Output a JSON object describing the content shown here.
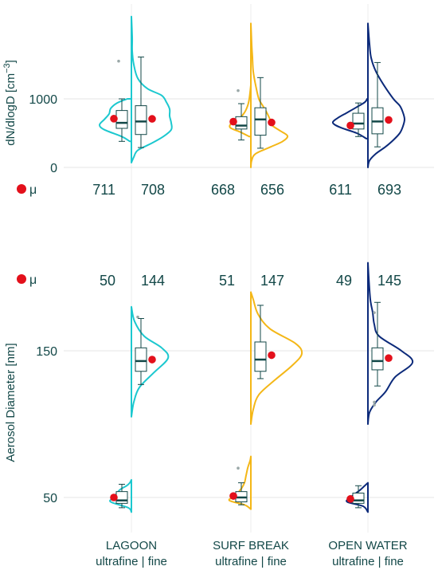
{
  "chart_data": {
    "type": "violin",
    "groups": [
      {
        "label_main": "LAGOON",
        "label_sub": "ultrafine | fine",
        "color": "#1cc8cf"
      },
      {
        "label_main": "SURF BREAK",
        "label_sub": "ultrafine | fine",
        "color": "#f4b717"
      },
      {
        "label_main": "OPEN WATER",
        "label_sub": "ultrafine | fine",
        "color": "#0c2a7a"
      }
    ],
    "mean_marker_color": "#e3101b",
    "panels": [
      {
        "ylabel": "dN/dlogD [cm",
        "ylabel_sup": "−3",
        "ylabel_tail": "]",
        "yticks": [
          0,
          1000
        ],
        "ylim": [
          -250,
          2200
        ],
        "legend_label": "μ",
        "means": [
          {
            "ultrafine": 711,
            "fine": 708
          },
          {
            "ultrafine": 668,
            "fine": 656
          },
          {
            "ultrafine": 611,
            "fine": 693
          }
        ],
        "mean_labels": [
          {
            "ultrafine": "711",
            "fine": "708"
          },
          {
            "ultrafine": "668",
            "fine": "656"
          },
          {
            "ultrafine": "611",
            "fine": "693"
          }
        ],
        "boxes": [
          {
            "ultrafine": {
              "whisker_low": 380,
              "q1": 570,
              "median": 650,
              "q3": 830,
              "whisker_high": 1000,
              "outliers": [
                1550
              ]
            },
            "fine": {
              "whisker_low": 290,
              "q1": 480,
              "median": 670,
              "q3": 900,
              "whisker_high": 1610,
              "outliers": []
            }
          },
          {
            "ultrafine": {
              "whisker_low": 400,
              "q1": 560,
              "median": 610,
              "q3": 740,
              "whisker_high": 930,
              "outliers": [
                1120
              ]
            },
            "fine": {
              "whisker_low": 280,
              "q1": 470,
              "median": 700,
              "q3": 870,
              "whisker_high": 1310,
              "outliers": []
            }
          },
          {
            "ultrafine": {
              "whisker_low": 450,
              "q1": 560,
              "median": 640,
              "q3": 790,
              "whisker_high": 940,
              "outliers": []
            },
            "fine": {
              "whisker_low": 300,
              "q1": 490,
              "median": 670,
              "q3": 870,
              "whisker_high": 1530,
              "outliers": []
            }
          }
        ]
      },
      {
        "ylabel": "Aerosol Diameter [nm]",
        "yticks": [
          50,
          150
        ],
        "ylim": [
          20,
          230
        ],
        "legend_label": "μ",
        "means": [
          {
            "ultrafine": 50,
            "fine": 144
          },
          {
            "ultrafine": 51,
            "fine": 147
          },
          {
            "ultrafine": 49,
            "fine": 145
          }
        ],
        "mean_labels": [
          {
            "ultrafine": "50",
            "fine": "144"
          },
          {
            "ultrafine": "51",
            "fine": "147"
          },
          {
            "ultrafine": "49",
            "fine": "145"
          }
        ],
        "boxes": [
          {
            "ultrafine": {
              "whisker_low": 43,
              "q1": 46,
              "median": 48,
              "q3": 54,
              "whisker_high": 59,
              "outliers": []
            },
            "fine": {
              "whisker_low": 127,
              "q1": 136,
              "median": 143,
              "q3": 152,
              "whisker_high": 172,
              "outliers": [
                173
              ]
            }
          },
          {
            "ultrafine": {
              "whisker_low": 45,
              "q1": 47,
              "median": 50,
              "q3": 54,
              "whisker_high": 60,
              "outliers": [
                70
              ]
            },
            "fine": {
              "whisker_low": 131,
              "q1": 136,
              "median": 144,
              "q3": 156,
              "whisker_high": 181,
              "outliers": []
            }
          },
          {
            "ultrafine": {
              "whisker_low": 43,
              "q1": 46,
              "median": 48,
              "q3": 53,
              "whisker_high": 58,
              "outliers": []
            },
            "fine": {
              "whisker_low": 126,
              "q1": 137,
              "median": 143,
              "q3": 152,
              "whisker_high": 183,
              "outliers": [
                176,
                115,
                113
              ]
            }
          }
        ]
      }
    ]
  }
}
